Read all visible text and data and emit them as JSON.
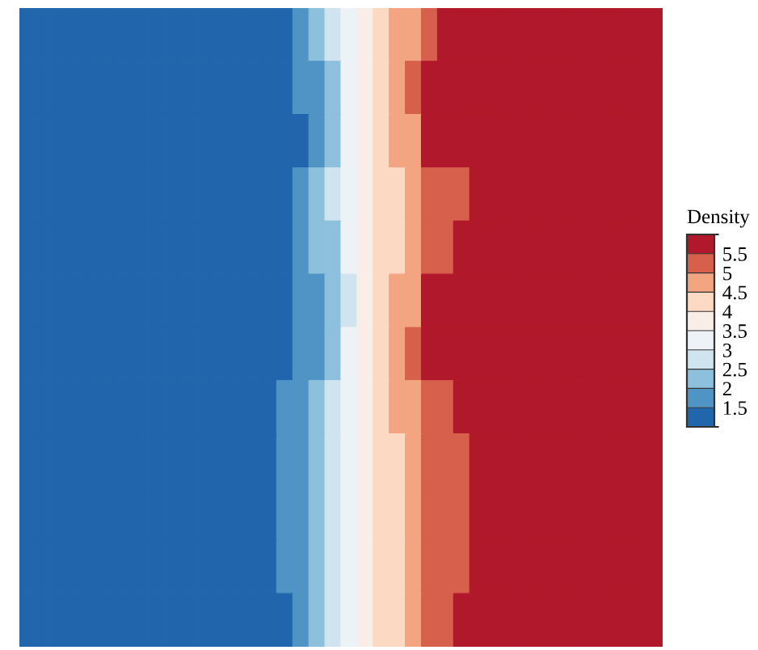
{
  "chart_data": {
    "type": "heatmap",
    "clabel": "Density",
    "tick_labels": false,
    "categories": [
      null,
      null,
      null,
      null,
      null,
      null,
      null,
      null,
      null,
      null,
      null,
      null,
      null,
      null,
      null,
      null,
      null,
      null,
      null,
      null,
      null,
      null,
      null,
      null,
      null,
      null,
      null,
      null,
      null,
      null,
      null,
      null,
      null,
      null,
      null,
      null,
      null,
      null,
      null,
      null
    ],
    "y_categories": [
      null,
      null,
      null,
      null,
      null,
      null,
      null,
      null,
      null,
      null,
      null,
      null
    ],
    "clim": [
      1,
      6
    ],
    "cticks": [
      1.5,
      2,
      2.5,
      3,
      3.5,
      4,
      4.5,
      5,
      5.5
    ],
    "colors": [
      "#2166ac",
      "#4f94c4",
      "#8dc0dd",
      "#d0e4ef",
      "#edf2f6",
      "#f9ede7",
      "#fcd9c2",
      "#f3a582",
      "#d7604d",
      "#b2182b"
    ],
    "cells": [
      [
        1.25,
        1.25,
        1.25,
        1.25,
        1.25,
        1.25,
        1.25,
        1.25,
        1.25,
        1.25,
        1.25,
        1.25,
        1.25,
        1.25,
        1.25,
        1.25,
        1.25,
        1.75,
        2.25,
        2.75,
        3.25,
        3.75,
        4.25,
        4.75,
        4.75,
        5.25,
        5.75,
        5.75,
        5.75,
        5.75,
        5.75,
        5.75,
        5.75,
        5.75,
        5.75,
        5.75,
        5.75,
        5.75,
        5.75,
        5.75
      ],
      [
        1.25,
        1.25,
        1.25,
        1.25,
        1.25,
        1.25,
        1.25,
        1.25,
        1.25,
        1.25,
        1.25,
        1.25,
        1.25,
        1.25,
        1.25,
        1.25,
        1.25,
        1.75,
        1.75,
        2.25,
        3.25,
        3.75,
        4.25,
        4.75,
        5.25,
        5.75,
        5.75,
        5.75,
        5.75,
        5.75,
        5.75,
        5.75,
        5.75,
        5.75,
        5.75,
        5.75,
        5.75,
        5.75,
        5.75,
        5.75
      ],
      [
        1.25,
        1.25,
        1.25,
        1.25,
        1.25,
        1.25,
        1.25,
        1.25,
        1.25,
        1.25,
        1.25,
        1.25,
        1.25,
        1.25,
        1.25,
        1.25,
        1.25,
        1.25,
        1.75,
        2.25,
        3.25,
        3.75,
        4.25,
        4.75,
        4.75,
        5.75,
        5.75,
        5.75,
        5.75,
        5.75,
        5.75,
        5.75,
        5.75,
        5.75,
        5.75,
        5.75,
        5.75,
        5.75,
        5.75,
        5.75
      ],
      [
        1.25,
        1.25,
        1.25,
        1.25,
        1.25,
        1.25,
        1.25,
        1.25,
        1.25,
        1.25,
        1.25,
        1.25,
        1.25,
        1.25,
        1.25,
        1.25,
        1.25,
        1.75,
        2.25,
        2.75,
        3.25,
        3.75,
        4.25,
        4.25,
        4.75,
        5.25,
        5.25,
        5.25,
        5.75,
        5.75,
        5.75,
        5.75,
        5.75,
        5.75,
        5.75,
        5.75,
        5.75,
        5.75,
        5.75,
        5.75
      ],
      [
        1.25,
        1.25,
        1.25,
        1.25,
        1.25,
        1.25,
        1.25,
        1.25,
        1.25,
        1.25,
        1.25,
        1.25,
        1.25,
        1.25,
        1.25,
        1.25,
        1.25,
        1.75,
        2.25,
        2.25,
        3.25,
        3.75,
        4.25,
        4.25,
        4.75,
        5.25,
        5.25,
        5.75,
        5.75,
        5.75,
        5.75,
        5.75,
        5.75,
        5.75,
        5.75,
        5.75,
        5.75,
        5.75,
        5.75,
        5.75
      ],
      [
        1.25,
        1.25,
        1.25,
        1.25,
        1.25,
        1.25,
        1.25,
        1.25,
        1.25,
        1.25,
        1.25,
        1.25,
        1.25,
        1.25,
        1.25,
        1.25,
        1.25,
        1.75,
        1.75,
        2.25,
        2.75,
        3.75,
        4.25,
        4.75,
        4.75,
        5.75,
        5.75,
        5.75,
        5.75,
        5.75,
        5.75,
        5.75,
        5.75,
        5.75,
        5.75,
        5.75,
        5.75,
        5.75,
        5.75,
        5.75
      ],
      [
        1.25,
        1.25,
        1.25,
        1.25,
        1.25,
        1.25,
        1.25,
        1.25,
        1.25,
        1.25,
        1.25,
        1.25,
        1.25,
        1.25,
        1.25,
        1.25,
        1.25,
        1.75,
        1.75,
        2.25,
        3.25,
        3.75,
        4.25,
        4.75,
        5.25,
        5.75,
        5.75,
        5.75,
        5.75,
        5.75,
        5.75,
        5.75,
        5.75,
        5.75,
        5.75,
        5.75,
        5.75,
        5.75,
        5.75,
        5.75
      ],
      [
        1.25,
        1.25,
        1.25,
        1.25,
        1.25,
        1.25,
        1.25,
        1.25,
        1.25,
        1.25,
        1.25,
        1.25,
        1.25,
        1.25,
        1.25,
        1.25,
        1.75,
        1.75,
        2.25,
        2.75,
        3.25,
        3.75,
        4.25,
        4.75,
        4.75,
        5.25,
        5.25,
        5.75,
        5.75,
        5.75,
        5.75,
        5.75,
        5.75,
        5.75,
        5.75,
        5.75,
        5.75,
        5.75,
        5.75,
        5.75
      ],
      [
        1.25,
        1.25,
        1.25,
        1.25,
        1.25,
        1.25,
        1.25,
        1.25,
        1.25,
        1.25,
        1.25,
        1.25,
        1.25,
        1.25,
        1.25,
        1.25,
        1.75,
        1.75,
        2.25,
        2.75,
        3.25,
        3.75,
        4.25,
        4.25,
        4.75,
        5.25,
        5.25,
        5.25,
        5.75,
        5.75,
        5.75,
        5.75,
        5.75,
        5.75,
        5.75,
        5.75,
        5.75,
        5.75,
        5.75,
        5.75
      ],
      [
        1.25,
        1.25,
        1.25,
        1.25,
        1.25,
        1.25,
        1.25,
        1.25,
        1.25,
        1.25,
        1.25,
        1.25,
        1.25,
        1.25,
        1.25,
        1.25,
        1.75,
        1.75,
        2.25,
        2.75,
        3.25,
        3.75,
        4.25,
        4.25,
        4.75,
        5.25,
        5.25,
        5.25,
        5.75,
        5.75,
        5.75,
        5.75,
        5.75,
        5.75,
        5.75,
        5.75,
        5.75,
        5.75,
        5.75,
        5.75
      ],
      [
        1.25,
        1.25,
        1.25,
        1.25,
        1.25,
        1.25,
        1.25,
        1.25,
        1.25,
        1.25,
        1.25,
        1.25,
        1.25,
        1.25,
        1.25,
        1.25,
        1.75,
        1.75,
        2.25,
        2.75,
        3.25,
        3.75,
        4.25,
        4.25,
        4.75,
        5.25,
        5.25,
        5.25,
        5.75,
        5.75,
        5.75,
        5.75,
        5.75,
        5.75,
        5.75,
        5.75,
        5.75,
        5.75,
        5.75,
        5.75
      ],
      [
        1.25,
        1.25,
        1.25,
        1.25,
        1.25,
        1.25,
        1.25,
        1.25,
        1.25,
        1.25,
        1.25,
        1.25,
        1.25,
        1.25,
        1.25,
        1.25,
        1.25,
        1.75,
        2.25,
        2.75,
        3.25,
        3.75,
        4.25,
        4.25,
        4.75,
        5.25,
        5.25,
        5.75,
        5.75,
        5.75,
        5.75,
        5.75,
        5.75,
        5.75,
        5.75,
        5.75,
        5.75,
        5.75,
        5.75,
        5.75
      ]
    ]
  }
}
